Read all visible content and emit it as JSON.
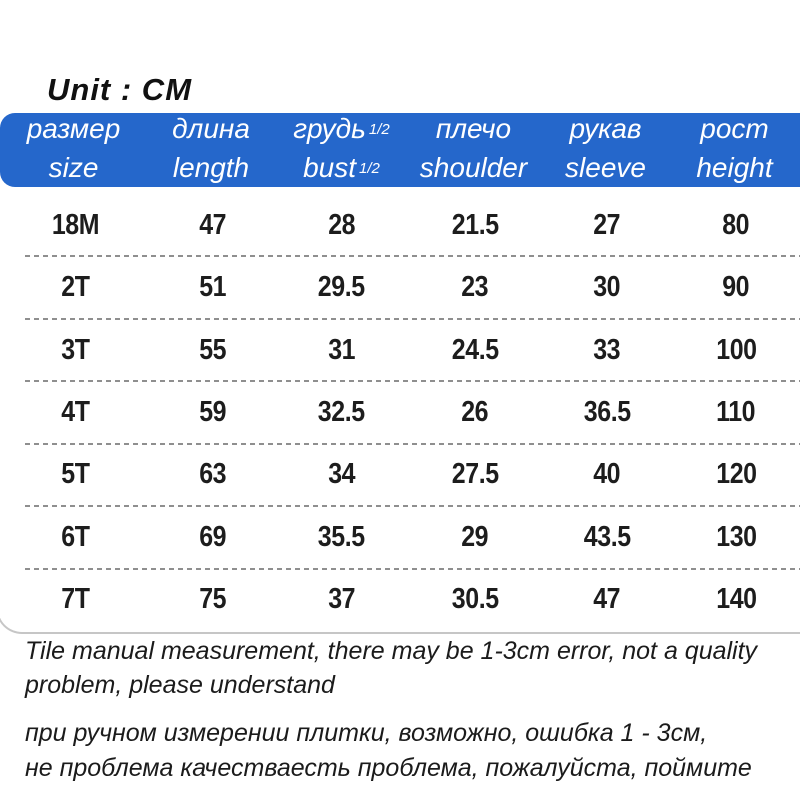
{
  "title": {
    "unit_label": "Unit : CM"
  },
  "colors": {
    "header_bg": "#2567cb",
    "header_text": "#ffffff",
    "body_text": "#1d1d1d",
    "row_divider": "#8f8f8f",
    "card_border": "#c6c6c6"
  },
  "table": {
    "columns": [
      {
        "ru": "размер",
        "ru_suffix": "",
        "en": "size",
        "en_suffix": ""
      },
      {
        "ru": "длина",
        "ru_suffix": "",
        "en": "length",
        "en_suffix": ""
      },
      {
        "ru": "грудь",
        "ru_suffix": "1/2",
        "en": "bust",
        "en_suffix": "1/2"
      },
      {
        "ru": "плечо",
        "ru_suffix": "",
        "en": "shoulder",
        "en_suffix": ""
      },
      {
        "ru": "рукав",
        "ru_suffix": "",
        "en": "sleeve",
        "en_suffix": ""
      },
      {
        "ru": "рост",
        "ru_suffix": "",
        "en": "height",
        "en_suffix": ""
      }
    ],
    "rows": [
      {
        "cells": [
          "18M",
          "47",
          "28",
          "21.5",
          "27",
          "80"
        ]
      },
      {
        "cells": [
          "2T",
          "51",
          "29.5",
          "23",
          "30",
          "90"
        ]
      },
      {
        "cells": [
          "3T",
          "55",
          "31",
          "24.5",
          "33",
          "100"
        ]
      },
      {
        "cells": [
          "4T",
          "59",
          "32.5",
          "26",
          "36.5",
          "110"
        ]
      },
      {
        "cells": [
          "5T",
          "63",
          "34",
          "27.5",
          "40",
          "120"
        ]
      },
      {
        "cells": [
          "6T",
          "69",
          "35.5",
          "29",
          "43.5",
          "130"
        ]
      },
      {
        "cells": [
          "7T",
          "75",
          "37",
          "30.5",
          "47",
          "140"
        ]
      }
    ]
  },
  "notes": {
    "en_line1": "Tile manual measurement, there may be 1-3cm error, not a quality",
    "en_line2": "problem, please understand",
    "ru_line1": "при ручном измерении плитки, возможно, ошибка 1 - 3см,",
    "ru_line2": "не проблема качестваесть проблема, пожалуйста, поймите"
  },
  "chart_data": {
    "type": "table",
    "title": "Unit : CM",
    "unit": "CM",
    "columns": [
      "размер / size",
      "длина / length",
      "грудь 1/2 / bust 1/2",
      "плечо / shoulder",
      "рукав / sleeve",
      "рост / height"
    ],
    "rows": [
      [
        "18M",
        47,
        28,
        21.5,
        27,
        80
      ],
      [
        "2T",
        51,
        29.5,
        23,
        30,
        90
      ],
      [
        "3T",
        55,
        31,
        24.5,
        33,
        100
      ],
      [
        "4T",
        59,
        32.5,
        26,
        36.5,
        110
      ],
      [
        "5T",
        63,
        34,
        27.5,
        40,
        120
      ],
      [
        "6T",
        69,
        35.5,
        29,
        43.5,
        130
      ],
      [
        "7T",
        75,
        37,
        30.5,
        47,
        140
      ]
    ]
  }
}
